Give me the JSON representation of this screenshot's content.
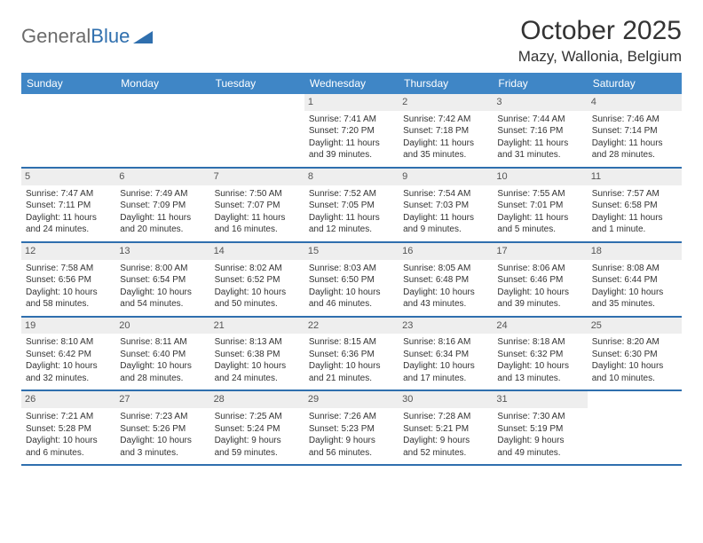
{
  "logo": {
    "part1": "General",
    "part2": "Blue"
  },
  "title": "October 2025",
  "location": "Mazy, Wallonia, Belgium",
  "colors": {
    "header_bg": "#3f86c6",
    "border": "#2f6fae",
    "daynum_bg": "#eeeeee",
    "text": "#333333"
  },
  "dayNames": [
    "Sunday",
    "Monday",
    "Tuesday",
    "Wednesday",
    "Thursday",
    "Friday",
    "Saturday"
  ],
  "weeks": [
    [
      null,
      null,
      null,
      {
        "n": "1",
        "sr": "Sunrise: 7:41 AM",
        "ss": "Sunset: 7:20 PM",
        "d1": "Daylight: 11 hours",
        "d2": "and 39 minutes."
      },
      {
        "n": "2",
        "sr": "Sunrise: 7:42 AM",
        "ss": "Sunset: 7:18 PM",
        "d1": "Daylight: 11 hours",
        "d2": "and 35 minutes."
      },
      {
        "n": "3",
        "sr": "Sunrise: 7:44 AM",
        "ss": "Sunset: 7:16 PM",
        "d1": "Daylight: 11 hours",
        "d2": "and 31 minutes."
      },
      {
        "n": "4",
        "sr": "Sunrise: 7:46 AM",
        "ss": "Sunset: 7:14 PM",
        "d1": "Daylight: 11 hours",
        "d2": "and 28 minutes."
      }
    ],
    [
      {
        "n": "5",
        "sr": "Sunrise: 7:47 AM",
        "ss": "Sunset: 7:11 PM",
        "d1": "Daylight: 11 hours",
        "d2": "and 24 minutes."
      },
      {
        "n": "6",
        "sr": "Sunrise: 7:49 AM",
        "ss": "Sunset: 7:09 PM",
        "d1": "Daylight: 11 hours",
        "d2": "and 20 minutes."
      },
      {
        "n": "7",
        "sr": "Sunrise: 7:50 AM",
        "ss": "Sunset: 7:07 PM",
        "d1": "Daylight: 11 hours",
        "d2": "and 16 minutes."
      },
      {
        "n": "8",
        "sr": "Sunrise: 7:52 AM",
        "ss": "Sunset: 7:05 PM",
        "d1": "Daylight: 11 hours",
        "d2": "and 12 minutes."
      },
      {
        "n": "9",
        "sr": "Sunrise: 7:54 AM",
        "ss": "Sunset: 7:03 PM",
        "d1": "Daylight: 11 hours",
        "d2": "and 9 minutes."
      },
      {
        "n": "10",
        "sr": "Sunrise: 7:55 AM",
        "ss": "Sunset: 7:01 PM",
        "d1": "Daylight: 11 hours",
        "d2": "and 5 minutes."
      },
      {
        "n": "11",
        "sr": "Sunrise: 7:57 AM",
        "ss": "Sunset: 6:58 PM",
        "d1": "Daylight: 11 hours",
        "d2": "and 1 minute."
      }
    ],
    [
      {
        "n": "12",
        "sr": "Sunrise: 7:58 AM",
        "ss": "Sunset: 6:56 PM",
        "d1": "Daylight: 10 hours",
        "d2": "and 58 minutes."
      },
      {
        "n": "13",
        "sr": "Sunrise: 8:00 AM",
        "ss": "Sunset: 6:54 PM",
        "d1": "Daylight: 10 hours",
        "d2": "and 54 minutes."
      },
      {
        "n": "14",
        "sr": "Sunrise: 8:02 AM",
        "ss": "Sunset: 6:52 PM",
        "d1": "Daylight: 10 hours",
        "d2": "and 50 minutes."
      },
      {
        "n": "15",
        "sr": "Sunrise: 8:03 AM",
        "ss": "Sunset: 6:50 PM",
        "d1": "Daylight: 10 hours",
        "d2": "and 46 minutes."
      },
      {
        "n": "16",
        "sr": "Sunrise: 8:05 AM",
        "ss": "Sunset: 6:48 PM",
        "d1": "Daylight: 10 hours",
        "d2": "and 43 minutes."
      },
      {
        "n": "17",
        "sr": "Sunrise: 8:06 AM",
        "ss": "Sunset: 6:46 PM",
        "d1": "Daylight: 10 hours",
        "d2": "and 39 minutes."
      },
      {
        "n": "18",
        "sr": "Sunrise: 8:08 AM",
        "ss": "Sunset: 6:44 PM",
        "d1": "Daylight: 10 hours",
        "d2": "and 35 minutes."
      }
    ],
    [
      {
        "n": "19",
        "sr": "Sunrise: 8:10 AM",
        "ss": "Sunset: 6:42 PM",
        "d1": "Daylight: 10 hours",
        "d2": "and 32 minutes."
      },
      {
        "n": "20",
        "sr": "Sunrise: 8:11 AM",
        "ss": "Sunset: 6:40 PM",
        "d1": "Daylight: 10 hours",
        "d2": "and 28 minutes."
      },
      {
        "n": "21",
        "sr": "Sunrise: 8:13 AM",
        "ss": "Sunset: 6:38 PM",
        "d1": "Daylight: 10 hours",
        "d2": "and 24 minutes."
      },
      {
        "n": "22",
        "sr": "Sunrise: 8:15 AM",
        "ss": "Sunset: 6:36 PM",
        "d1": "Daylight: 10 hours",
        "d2": "and 21 minutes."
      },
      {
        "n": "23",
        "sr": "Sunrise: 8:16 AM",
        "ss": "Sunset: 6:34 PM",
        "d1": "Daylight: 10 hours",
        "d2": "and 17 minutes."
      },
      {
        "n": "24",
        "sr": "Sunrise: 8:18 AM",
        "ss": "Sunset: 6:32 PM",
        "d1": "Daylight: 10 hours",
        "d2": "and 13 minutes."
      },
      {
        "n": "25",
        "sr": "Sunrise: 8:20 AM",
        "ss": "Sunset: 6:30 PM",
        "d1": "Daylight: 10 hours",
        "d2": "and 10 minutes."
      }
    ],
    [
      {
        "n": "26",
        "sr": "Sunrise: 7:21 AM",
        "ss": "Sunset: 5:28 PM",
        "d1": "Daylight: 10 hours",
        "d2": "and 6 minutes."
      },
      {
        "n": "27",
        "sr": "Sunrise: 7:23 AM",
        "ss": "Sunset: 5:26 PM",
        "d1": "Daylight: 10 hours",
        "d2": "and 3 minutes."
      },
      {
        "n": "28",
        "sr": "Sunrise: 7:25 AM",
        "ss": "Sunset: 5:24 PM",
        "d1": "Daylight: 9 hours",
        "d2": "and 59 minutes."
      },
      {
        "n": "29",
        "sr": "Sunrise: 7:26 AM",
        "ss": "Sunset: 5:23 PM",
        "d1": "Daylight: 9 hours",
        "d2": "and 56 minutes."
      },
      {
        "n": "30",
        "sr": "Sunrise: 7:28 AM",
        "ss": "Sunset: 5:21 PM",
        "d1": "Daylight: 9 hours",
        "d2": "and 52 minutes."
      },
      {
        "n": "31",
        "sr": "Sunrise: 7:30 AM",
        "ss": "Sunset: 5:19 PM",
        "d1": "Daylight: 9 hours",
        "d2": "and 49 minutes."
      },
      null
    ]
  ]
}
